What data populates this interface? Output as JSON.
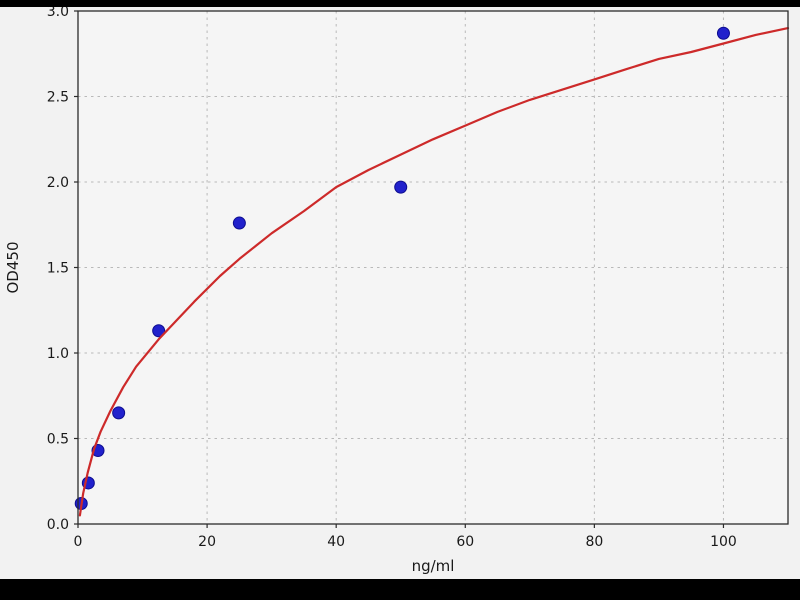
{
  "window": {
    "figure_background": "#f2f2f2",
    "plot_background": "#f5f5f5",
    "letterbox_color": "#000000"
  },
  "chart_data": {
    "type": "scatter",
    "title": "",
    "xlabel": "ng/ml",
    "ylabel": "OD450",
    "xlim": [
      0,
      110
    ],
    "ylim": [
      0.0,
      3.0
    ],
    "grid": true,
    "grid_color": "#b9b9b9",
    "axis_color": "#2b2b2b",
    "xticks": [
      0,
      20,
      40,
      60,
      80,
      100
    ],
    "xticklabels": [
      "0",
      "20",
      "40",
      "60",
      "80",
      "100"
    ],
    "yticks": [
      0.0,
      0.5,
      1.0,
      1.5,
      2.0,
      2.5,
      3.0
    ],
    "yticklabels": [
      "0.0",
      "0.5",
      "1.0",
      "1.5",
      "2.0",
      "2.5",
      "3.0"
    ],
    "series": [
      {
        "name": "standards-scatter",
        "type": "scatter",
        "color": "#2121cc",
        "edge_color": "#0d0d8f",
        "marker_radius": 6,
        "x": [
          0.5,
          1.6,
          3.1,
          6.3,
          12.5,
          25,
          50,
          100
        ],
        "y": [
          0.12,
          0.24,
          0.43,
          0.65,
          1.13,
          1.76,
          1.97,
          2.87
        ]
      },
      {
        "name": "fit-curve",
        "type": "line",
        "color": "#cd2a2a",
        "line_width": 2.2,
        "x": [
          0.3,
          0.8,
          1.5,
          2.5,
          3.5,
          5,
          7,
          9,
          12.5,
          15,
          18,
          22,
          25,
          30,
          35,
          40,
          45,
          50,
          55,
          60,
          65,
          70,
          75,
          80,
          85,
          90,
          95,
          100,
          105,
          110
        ],
        "y": [
          0.05,
          0.18,
          0.3,
          0.44,
          0.54,
          0.66,
          0.8,
          0.92,
          1.08,
          1.18,
          1.3,
          1.45,
          1.55,
          1.7,
          1.83,
          1.97,
          2.07,
          2.16,
          2.25,
          2.33,
          2.41,
          2.48,
          2.54,
          2.6,
          2.66,
          2.72,
          2.76,
          2.81,
          2.86,
          2.9
        ]
      }
    ]
  }
}
